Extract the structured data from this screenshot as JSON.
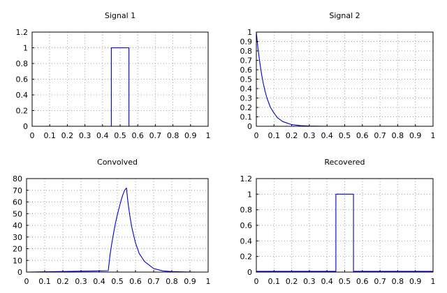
{
  "chart_data": [
    {
      "type": "line",
      "title": "Signal 1",
      "xlim": [
        0,
        1
      ],
      "ylim": [
        0,
        1.2
      ],
      "xticks": [
        "0",
        "0.1",
        "0.2",
        "0.3",
        "0.4",
        "0.5",
        "0.6",
        "0.7",
        "0.8",
        "0.9",
        "1"
      ],
      "yticks": [
        "0",
        "0.2",
        "0.4",
        "0.6",
        "0.8",
        "1",
        "1.2"
      ],
      "grid": true,
      "series": [
        {
          "color": "#0000cc",
          "x": [
            0,
            0.1,
            0.2,
            0.3,
            0.4,
            0.45,
            0.45,
            0.5,
            0.55,
            0.55,
            0.6,
            0.7,
            0.8,
            0.9,
            1.0
          ],
          "y": [
            0,
            0,
            0,
            0,
            0,
            0,
            1.0,
            1.0,
            1.0,
            0,
            0,
            0,
            0,
            0,
            0
          ]
        }
      ]
    },
    {
      "type": "line",
      "title": "Signal 2",
      "xlim": [
        0,
        1
      ],
      "ylim": [
        0,
        1
      ],
      "xticks": [
        "0",
        "0.1",
        "0.2",
        "0.3",
        "0.4",
        "0.5",
        "0.6",
        "0.7",
        "0.8",
        "0.9",
        "1"
      ],
      "yticks": [
        "0",
        "0.1",
        "0.2",
        "0.3",
        "0.4",
        "0.5",
        "0.6",
        "0.7",
        "0.8",
        "0.9",
        "1"
      ],
      "grid": true,
      "series": [
        {
          "color": "#0000cc",
          "x": [
            0,
            0.005,
            0.01,
            0.02,
            0.03,
            0.04,
            0.05,
            0.06,
            0.08,
            0.1,
            0.12,
            0.15,
            0.2,
            0.25,
            0.3,
            0.4,
            0.6,
            0.8,
            1.0
          ],
          "y": [
            1.0,
            0.9,
            0.82,
            0.67,
            0.55,
            0.45,
            0.37,
            0.3,
            0.2,
            0.14,
            0.09,
            0.05,
            0.018,
            0.007,
            0.002,
            0,
            0,
            0,
            0
          ]
        }
      ]
    },
    {
      "type": "line",
      "title": "Convolved",
      "xlim": [
        0,
        1
      ],
      "ylim": [
        0,
        80
      ],
      "xticks": [
        "0",
        "0.1",
        "0.2",
        "0.3",
        "0.4",
        "0.5",
        "0.6",
        "0.7",
        "0.8",
        "0.9",
        "1"
      ],
      "yticks": [
        "0",
        "10",
        "20",
        "30",
        "40",
        "50",
        "60",
        "70",
        "80"
      ],
      "grid": true,
      "series": [
        {
          "color": "#0000cc",
          "x": [
            0,
            0.1,
            0.2,
            0.3,
            0.4,
            0.45,
            0.46,
            0.47,
            0.48,
            0.49,
            0.5,
            0.51,
            0.52,
            0.53,
            0.54,
            0.55,
            0.56,
            0.57,
            0.58,
            0.6,
            0.62,
            0.65,
            0.7,
            0.75,
            0.8,
            0.85,
            0.93
          ],
          "y": [
            0,
            0.3,
            0.5,
            0.8,
            1.0,
            1.2,
            15,
            25,
            34,
            42,
            49,
            55,
            61,
            66,
            70,
            72,
            58,
            47,
            38,
            25,
            16,
            9,
            3,
            1,
            0.4,
            0.2,
            0
          ]
        }
      ]
    },
    {
      "type": "line",
      "title": "Recovered",
      "xlim": [
        0,
        1
      ],
      "ylim": [
        0,
        1.2
      ],
      "xticks": [
        "0",
        "0.1",
        "0.2",
        "0.3",
        "0.4",
        "0.5",
        "0.6",
        "0.7",
        "0.8",
        "0.9",
        "1"
      ],
      "yticks": [
        "0",
        "0.2",
        "0.4",
        "0.6",
        "0.8",
        "1",
        "1.2"
      ],
      "grid": true,
      "series": [
        {
          "color": "#0000cc",
          "x": [
            0,
            0.1,
            0.2,
            0.3,
            0.4,
            0.45,
            0.45,
            0.5,
            0.55,
            0.55,
            0.6,
            0.7,
            0.8,
            0.9,
            1.0
          ],
          "y": [
            0.01,
            0.01,
            0.01,
            0.01,
            0.01,
            0.01,
            1.0,
            1.0,
            1.0,
            0.01,
            0.01,
            0.01,
            0.01,
            0.01,
            0.01
          ]
        }
      ]
    }
  ]
}
